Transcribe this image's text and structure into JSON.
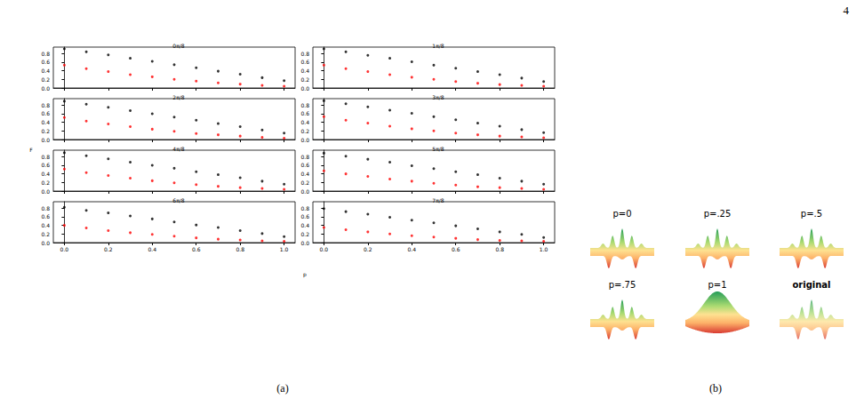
{
  "page_number": "4",
  "xlabel": "p",
  "ylabel": "F",
  "panels": [
    "(a)",
    "(b)"
  ],
  "surfaces": [
    "p=0",
    "p=.25",
    "p=.5",
    "p=.75",
    "p=1",
    "original"
  ],
  "chart_data": [
    {
      "type": "scatter",
      "title": "0π/8",
      "x": [
        0,
        0.1,
        0.2,
        0.3,
        0.4,
        0.5,
        0.6,
        0.7,
        0.8,
        0.9,
        1.0
      ],
      "series": [
        {
          "color": "#000000",
          "marker": "circle",
          "values": [
            0.91,
            0.84,
            0.77,
            0.69,
            0.62,
            0.54,
            0.47,
            0.39,
            0.32,
            0.24,
            0.17
          ]
        },
        {
          "color": "#ff0000",
          "marker": "circle",
          "values": [
            0.53,
            0.45,
            0.38,
            0.31,
            0.26,
            0.2,
            0.16,
            0.12,
            0.09,
            0.06,
            0.04
          ]
        }
      ],
      "xlim": [
        -0.05,
        1.05
      ],
      "xticks": [
        {
          "value": 0,
          "label": "0.0"
        },
        {
          "value": 0.2,
          "label": "0.2"
        },
        {
          "value": 0.4,
          "label": "0.4"
        },
        {
          "value": 0.6,
          "label": "0.6"
        },
        {
          "value": 0.8,
          "label": "0.8"
        },
        {
          "value": 1,
          "label": "1.0"
        }
      ],
      "ylim": [
        0,
        0.95
      ],
      "yticks": [
        {
          "value": 0,
          "label": "0.0"
        },
        {
          "value": 0.2,
          "label": "0.2"
        },
        {
          "value": 0.4,
          "label": "0.4"
        },
        {
          "value": 0.6,
          "label": "0.6"
        },
        {
          "value": 0.8,
          "label": "0.8"
        }
      ],
      "tick_labels": "y"
    },
    {
      "type": "scatter",
      "title": "1π/8",
      "x": [
        0,
        0.1,
        0.2,
        0.3,
        0.4,
        0.5,
        0.6,
        0.7,
        0.8,
        0.9,
        1.0
      ],
      "series": [
        {
          "color": "#000000",
          "marker": "circle",
          "values": [
            0.91,
            0.84,
            0.76,
            0.69,
            0.61,
            0.53,
            0.46,
            0.38,
            0.31,
            0.23,
            0.15
          ]
        },
        {
          "color": "#ff0000",
          "marker": "circle",
          "values": [
            0.53,
            0.45,
            0.38,
            0.31,
            0.25,
            0.2,
            0.15,
            0.11,
            0.08,
            0.06,
            0.04
          ]
        }
      ],
      "xlim": [
        -0.05,
        1.05
      ],
      "xticks": [
        {
          "value": 0,
          "label": "0.0"
        },
        {
          "value": 0.2,
          "label": "0.2"
        },
        {
          "value": 0.4,
          "label": "0.4"
        },
        {
          "value": 0.6,
          "label": "0.6"
        },
        {
          "value": 0.8,
          "label": "0.8"
        },
        {
          "value": 1,
          "label": "1.0"
        }
      ],
      "ylim": [
        0,
        0.95
      ],
      "yticks": [
        {
          "value": 0,
          "label": "0.0"
        },
        {
          "value": 0.2,
          "label": "0.2"
        },
        {
          "value": 0.4,
          "label": "0.4"
        },
        {
          "value": 0.6,
          "label": "0.6"
        },
        {
          "value": 0.8,
          "label": "0.8"
        }
      ],
      "tick_labels": "y"
    },
    {
      "type": "scatter",
      "title": "2π/8",
      "x": [
        0,
        0.1,
        0.2,
        0.3,
        0.4,
        0.5,
        0.6,
        0.7,
        0.8,
        0.9,
        1.0
      ],
      "series": [
        {
          "color": "#000000",
          "marker": "circle",
          "values": [
            0.89,
            0.82,
            0.75,
            0.67,
            0.6,
            0.52,
            0.45,
            0.37,
            0.3,
            0.22,
            0.15
          ]
        },
        {
          "color": "#ff0000",
          "marker": "circle",
          "values": [
            0.51,
            0.43,
            0.36,
            0.3,
            0.24,
            0.19,
            0.14,
            0.11,
            0.08,
            0.05,
            0.03
          ]
        }
      ],
      "xlim": [
        -0.05,
        1.05
      ],
      "xticks": [
        {
          "value": 0,
          "label": "0.0"
        },
        {
          "value": 0.2,
          "label": "0.2"
        },
        {
          "value": 0.4,
          "label": "0.4"
        },
        {
          "value": 0.6,
          "label": "0.6"
        },
        {
          "value": 0.8,
          "label": "0.8"
        },
        {
          "value": 1,
          "label": "1.0"
        }
      ],
      "ylim": [
        0,
        0.95
      ],
      "yticks": [
        {
          "value": 0,
          "label": "0.0"
        },
        {
          "value": 0.2,
          "label": "0.2"
        },
        {
          "value": 0.4,
          "label": "0.4"
        },
        {
          "value": 0.6,
          "label": "0.6"
        },
        {
          "value": 0.8,
          "label": "0.8"
        }
      ],
      "tick_labels": "y"
    },
    {
      "type": "scatter",
      "title": "3π/8",
      "x": [
        0,
        0.1,
        0.2,
        0.3,
        0.4,
        0.5,
        0.6,
        0.7,
        0.8,
        0.9,
        1.0
      ],
      "series": [
        {
          "color": "#000000",
          "marker": "circle",
          "values": [
            0.9,
            0.83,
            0.76,
            0.68,
            0.61,
            0.53,
            0.46,
            0.38,
            0.31,
            0.23,
            0.16
          ]
        },
        {
          "color": "#ff0000",
          "marker": "circle",
          "values": [
            0.53,
            0.45,
            0.38,
            0.31,
            0.25,
            0.2,
            0.15,
            0.11,
            0.08,
            0.06,
            0.04
          ]
        }
      ],
      "xlim": [
        -0.05,
        1.05
      ],
      "xticks": [
        {
          "value": 0,
          "label": "0.0"
        },
        {
          "value": 0.2,
          "label": "0.2"
        },
        {
          "value": 0.4,
          "label": "0.4"
        },
        {
          "value": 0.6,
          "label": "0.6"
        },
        {
          "value": 0.8,
          "label": "0.8"
        },
        {
          "value": 1,
          "label": "1.0"
        }
      ],
      "ylim": [
        0,
        0.95
      ],
      "yticks": [
        {
          "value": 0,
          "label": "0.0"
        },
        {
          "value": 0.2,
          "label": "0.2"
        },
        {
          "value": 0.4,
          "label": "0.4"
        },
        {
          "value": 0.6,
          "label": "0.6"
        },
        {
          "value": 0.8,
          "label": "0.8"
        }
      ],
      "tick_labels": "y"
    },
    {
      "type": "scatter",
      "title": "4π/8",
      "x": [
        0,
        0.1,
        0.2,
        0.3,
        0.4,
        0.5,
        0.6,
        0.7,
        0.8,
        0.9,
        1.0
      ],
      "series": [
        {
          "color": "#000000",
          "marker": "circle",
          "values": [
            0.89,
            0.82,
            0.75,
            0.67,
            0.6,
            0.53,
            0.45,
            0.38,
            0.31,
            0.23,
            0.16
          ]
        },
        {
          "color": "#ff0000",
          "marker": "circle",
          "values": [
            0.51,
            0.43,
            0.36,
            0.3,
            0.24,
            0.19,
            0.15,
            0.11,
            0.08,
            0.06,
            0.04
          ]
        }
      ],
      "xlim": [
        -0.05,
        1.05
      ],
      "xticks": [
        {
          "value": 0,
          "label": "0.0"
        },
        {
          "value": 0.2,
          "label": "0.2"
        },
        {
          "value": 0.4,
          "label": "0.4"
        },
        {
          "value": 0.6,
          "label": "0.6"
        },
        {
          "value": 0.8,
          "label": "0.8"
        },
        {
          "value": 1,
          "label": "1.0"
        }
      ],
      "ylim": [
        0,
        0.95
      ],
      "yticks": [
        {
          "value": 0,
          "label": "0.0"
        },
        {
          "value": 0.2,
          "label": "0.2"
        },
        {
          "value": 0.4,
          "label": "0.4"
        },
        {
          "value": 0.6,
          "label": "0.6"
        },
        {
          "value": 0.8,
          "label": "0.8"
        }
      ],
      "tick_labels": "y"
    },
    {
      "type": "scatter",
      "title": "5π/8",
      "x": [
        0,
        0.1,
        0.2,
        0.3,
        0.4,
        0.5,
        0.6,
        0.7,
        0.8,
        0.9,
        1.0
      ],
      "series": [
        {
          "color": "#000000",
          "marker": "circle",
          "values": [
            0.88,
            0.81,
            0.74,
            0.67,
            0.59,
            0.52,
            0.45,
            0.38,
            0.3,
            0.23,
            0.16
          ]
        },
        {
          "color": "#ff0000",
          "marker": "circle",
          "values": [
            0.47,
            0.4,
            0.34,
            0.28,
            0.23,
            0.18,
            0.14,
            0.1,
            0.08,
            0.06,
            0.04
          ]
        }
      ],
      "xlim": [
        -0.05,
        1.05
      ],
      "xticks": [
        {
          "value": 0,
          "label": "0.0"
        },
        {
          "value": 0.2,
          "label": "0.2"
        },
        {
          "value": 0.4,
          "label": "0.4"
        },
        {
          "value": 0.6,
          "label": "0.6"
        },
        {
          "value": 0.8,
          "label": "0.8"
        },
        {
          "value": 1,
          "label": "1.0"
        }
      ],
      "ylim": [
        0,
        0.95
      ],
      "yticks": [
        {
          "value": 0,
          "label": "0.0"
        },
        {
          "value": 0.2,
          "label": "0.2"
        },
        {
          "value": 0.4,
          "label": "0.4"
        },
        {
          "value": 0.6,
          "label": "0.6"
        },
        {
          "value": 0.8,
          "label": "0.8"
        }
      ],
      "tick_labels": "y"
    },
    {
      "type": "scatter",
      "title": "6π/8",
      "x": [
        0,
        0.1,
        0.2,
        0.3,
        0.4,
        0.5,
        0.6,
        0.7,
        0.8,
        0.9,
        1.0
      ],
      "series": [
        {
          "color": "#000000",
          "marker": "circle",
          "values": [
            0.82,
            0.75,
            0.69,
            0.62,
            0.55,
            0.48,
            0.41,
            0.35,
            0.28,
            0.21,
            0.14
          ]
        },
        {
          "color": "#ff0000",
          "marker": "circle",
          "values": [
            0.4,
            0.34,
            0.28,
            0.23,
            0.19,
            0.15,
            0.11,
            0.08,
            0.06,
            0.04,
            0.03
          ]
        }
      ],
      "xlim": [
        -0.05,
        1.05
      ],
      "xticks": [
        {
          "value": 0,
          "label": "0.0"
        },
        {
          "value": 0.2,
          "label": "0.2"
        },
        {
          "value": 0.4,
          "label": "0.4"
        },
        {
          "value": 0.6,
          "label": "0.6"
        },
        {
          "value": 0.8,
          "label": "0.8"
        },
        {
          "value": 1,
          "label": "1.0"
        }
      ],
      "ylim": [
        0,
        0.95
      ],
      "yticks": [
        {
          "value": 0,
          "label": "0.0"
        },
        {
          "value": 0.2,
          "label": "0.2"
        },
        {
          "value": 0.4,
          "label": "0.4"
        },
        {
          "value": 0.6,
          "label": "0.6"
        },
        {
          "value": 0.8,
          "label": "0.8"
        }
      ]
    },
    {
      "type": "scatter",
      "title": "7π/8",
      "x": [
        0,
        0.1,
        0.2,
        0.3,
        0.4,
        0.5,
        0.6,
        0.7,
        0.8,
        0.9,
        1.0
      ],
      "series": [
        {
          "color": "#000000",
          "marker": "circle",
          "values": [
            0.79,
            0.72,
            0.66,
            0.59,
            0.52,
            0.46,
            0.39,
            0.32,
            0.25,
            0.19,
            0.12
          ]
        },
        {
          "color": "#ff0000",
          "marker": "circle",
          "values": [
            0.35,
            0.3,
            0.25,
            0.2,
            0.16,
            0.13,
            0.1,
            0.07,
            0.05,
            0.04,
            0.03
          ]
        }
      ],
      "xlim": [
        -0.05,
        1.05
      ],
      "xticks": [
        {
          "value": 0,
          "label": "0.0"
        },
        {
          "value": 0.2,
          "label": "0.2"
        },
        {
          "value": 0.4,
          "label": "0.4"
        },
        {
          "value": 0.6,
          "label": "0.6"
        },
        {
          "value": 0.8,
          "label": "0.8"
        },
        {
          "value": 1,
          "label": "1.0"
        }
      ],
      "ylim": [
        0,
        0.95
      ],
      "yticks": [
        {
          "value": 0,
          "label": "0.0"
        },
        {
          "value": 0.2,
          "label": "0.2"
        },
        {
          "value": 0.4,
          "label": "0.4"
        },
        {
          "value": 0.6,
          "label": "0.6"
        },
        {
          "value": 0.8,
          "label": "0.8"
        }
      ]
    }
  ]
}
